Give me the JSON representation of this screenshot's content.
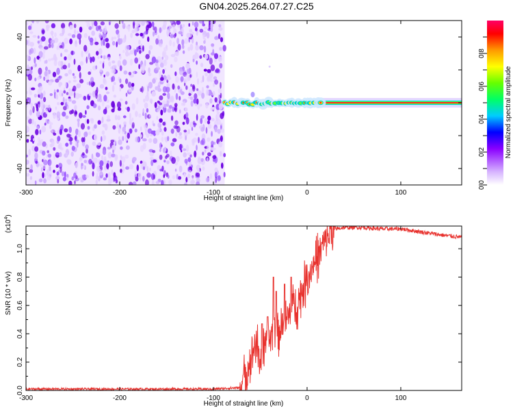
{
  "title": "GN04.2025.264.07.27.C25",
  "chart_data": [
    {
      "type": "heatmap",
      "name": "spectrogram",
      "xlabel": "Height of straight line (km)",
      "ylabel": "Frequency (Hz)",
      "xlim": [
        -300,
        165
      ],
      "ylim": [
        -50,
        50
      ],
      "xticks": [
        -300,
        -200,
        -100,
        0,
        100
      ],
      "yticks": [
        -40,
        -20,
        0,
        20,
        40
      ],
      "noise_region_x": [
        -300,
        -88
      ],
      "signal_region_x": [
        -88,
        165
      ],
      "signal_freq": 0,
      "colorbar": {
        "label": "Normalized spectral amplitude",
        "range": [
          0,
          1
        ],
        "ticks": [
          "0.0",
          "0.2",
          "0.4",
          "0.6",
          "0.8"
        ],
        "colors": [
          "#ffffff",
          "#cc99ff",
          "#7a00ff",
          "#0000ff",
          "#00ccff",
          "#00ff66",
          "#66ff00",
          "#ffff00",
          "#ff9900",
          "#ff0000",
          "#ff0066"
        ]
      }
    },
    {
      "type": "line",
      "name": "snr",
      "xlabel": "Height of straight line (km)",
      "ylabel": "SNR (10 * v/v)",
      "y_multiplier": "(x10",
      "y_exponent": "4",
      "y_multiplier_close": ")",
      "xlim": [
        -300,
        165
      ],
      "ylim": [
        0,
        1.16
      ],
      "xticks": [
        -300,
        -200,
        -100,
        0,
        100
      ],
      "yticks": [
        "0.0",
        "0.2",
        "0.4",
        "0.6",
        "0.8",
        "1.0"
      ],
      "line_color": "#e8322e",
      "x": [
        -300,
        -200,
        -100,
        -72,
        -62,
        -55,
        -50,
        -45,
        -40,
        -35,
        -30,
        -25,
        -20,
        -15,
        -10,
        -5,
        0,
        5,
        10,
        15,
        20,
        25,
        30,
        40,
        50,
        60,
        80,
        100,
        120,
        140,
        165
      ],
      "y": [
        0.01,
        0.01,
        0.01,
        0.02,
        0.18,
        0.35,
        0.22,
        0.28,
        0.36,
        0.48,
        0.4,
        0.52,
        0.5,
        0.62,
        0.6,
        0.72,
        0.78,
        0.86,
        0.93,
        1.0,
        1.06,
        1.12,
        1.14,
        1.15,
        1.15,
        1.15,
        1.14,
        1.14,
        1.12,
        1.1,
        1.08
      ],
      "spikes": [
        [
          -48,
          0.47
        ],
        [
          -42,
          0.52
        ],
        [
          -36,
          0.8
        ],
        [
          -33,
          0.7
        ],
        [
          -24,
          0.75
        ],
        [
          -17,
          0.8
        ]
      ]
    }
  ]
}
